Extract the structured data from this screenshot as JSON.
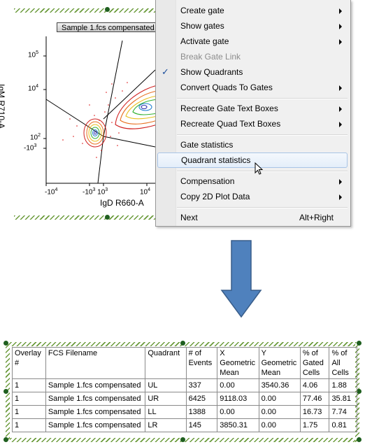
{
  "plot": {
    "tag": "Sample 1.fcs compensated",
    "x_axis_title": "IgD R660-A",
    "y_axis_title": "IgM R710-A",
    "y_ticks": [
      "10^5",
      "10^4",
      "10^2",
      "-10^3"
    ],
    "x_ticks": [
      "-10^4",
      "-10^3 10^3",
      "10^4"
    ]
  },
  "menu": {
    "items": [
      {
        "label": "Create gate",
        "submenu": true
      },
      {
        "label": "Show gates",
        "submenu": true
      },
      {
        "label": "Activate gate",
        "submenu": true
      },
      {
        "label": "Break Gate Link",
        "disabled": true
      },
      {
        "label": "Show Quadrants",
        "checked": true
      },
      {
        "label": "Convert Quads To Gates",
        "submenu": true
      },
      {
        "label": "Recreate Gate Text Boxes",
        "submenu": true
      },
      {
        "label": "Recreate Quad Text Boxes",
        "submenu": true
      },
      {
        "label": "Gate statistics"
      },
      {
        "label": "Quadrant statistics",
        "highlighted": true
      },
      {
        "label": "Compensation",
        "submenu": true
      },
      {
        "label": "Copy 2D Plot Data",
        "submenu": true
      },
      {
        "label": "Next",
        "shortcut": "Alt+Right"
      }
    ],
    "check_glyph": "✓"
  },
  "table": {
    "headers": [
      "Overlay #",
      "FCS Filename",
      "Quadrant",
      "# of Events",
      "X Geometric Mean",
      "Y Geometric Mean",
      "% of Gated Cells",
      "% of All Cells"
    ],
    "rows": [
      [
        "1",
        "Sample 1.fcs compensated",
        "UL",
        "337",
        "0.00",
        "3540.36",
        "4.06",
        "1.88"
      ],
      [
        "1",
        "Sample 1.fcs compensated",
        "UR",
        "6425",
        "9118.03",
        "0.00",
        "77.46",
        "35.81"
      ],
      [
        "1",
        "Sample 1.fcs compensated",
        "LL",
        "1388",
        "0.00",
        "0.00",
        "16.73",
        "7.74"
      ],
      [
        "1",
        "Sample 1.fcs compensated",
        "LR",
        "145",
        "3850.31",
        "0.00",
        "1.75",
        "0.81"
      ]
    ]
  },
  "colors": {
    "highlight": "#e4eefa",
    "arrow": "#4f81bd",
    "hatch": "#6a9a3a"
  }
}
